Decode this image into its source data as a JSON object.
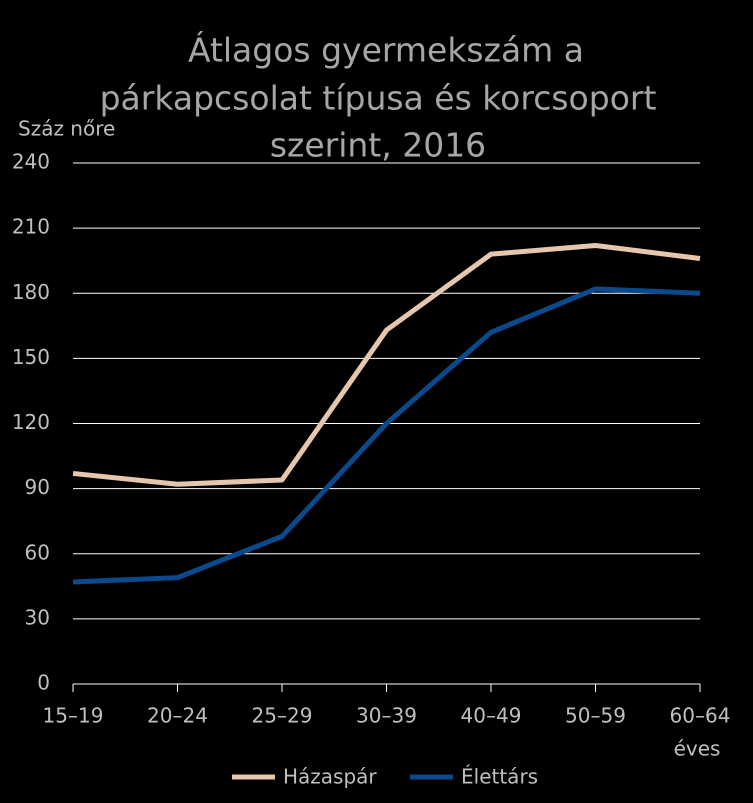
{
  "chart_data": {
    "type": "line",
    "title": [
      "Átlagos gyermekszám a",
      "párkapcsolat típusa és korcsoport",
      "szerint, 2016"
    ],
    "y_axis_label": "Száz nőre",
    "x_axis_unit": "éves",
    "categories": [
      "15–19",
      "20–24",
      "25–29",
      "30–39",
      "40–49",
      "50–59",
      "60–64"
    ],
    "series": [
      {
        "name": "Házaspár",
        "color": "#e6c6ad",
        "values": [
          97,
          92,
          94,
          163,
          198,
          202,
          196
        ]
      },
      {
        "name": "Élettárs",
        "color": "#0a4a8c",
        "values": [
          47,
          49,
          68,
          120,
          162,
          182,
          180
        ]
      }
    ],
    "ylim": [
      0,
      240
    ],
    "yticks": [
      0,
      30,
      60,
      90,
      120,
      150,
      180,
      210,
      240
    ],
    "grid": true
  }
}
